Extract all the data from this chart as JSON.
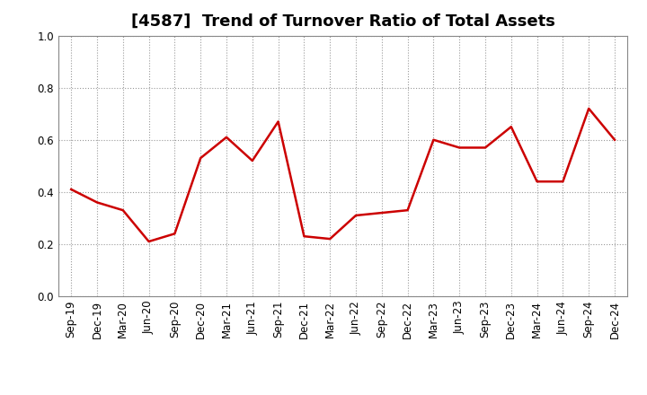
{
  "title": "[4587]  Trend of Turnover Ratio of Total Assets",
  "x_labels": [
    "Sep-19",
    "Dec-19",
    "Mar-20",
    "Jun-20",
    "Sep-20",
    "Dec-20",
    "Mar-21",
    "Jun-21",
    "Sep-21",
    "Dec-21",
    "Mar-22",
    "Jun-22",
    "Sep-22",
    "Dec-22",
    "Mar-23",
    "Jun-23",
    "Sep-23",
    "Dec-23",
    "Mar-24",
    "Jun-24",
    "Sep-24",
    "Dec-24"
  ],
  "y_values": [
    0.41,
    0.36,
    0.33,
    0.21,
    0.24,
    0.53,
    0.61,
    0.52,
    0.67,
    0.23,
    0.22,
    0.31,
    0.32,
    0.33,
    0.6,
    0.57,
    0.57,
    0.65,
    0.44,
    0.44,
    0.72,
    0.6
  ],
  "line_color": "#cc0000",
  "line_width": 1.8,
  "ylim": [
    0.0,
    1.0
  ],
  "yticks": [
    0.0,
    0.2,
    0.4,
    0.6,
    0.8,
    1.0
  ],
  "background_color": "#ffffff",
  "grid_color": "#999999",
  "title_fontsize": 13,
  "tick_fontsize": 8.5
}
